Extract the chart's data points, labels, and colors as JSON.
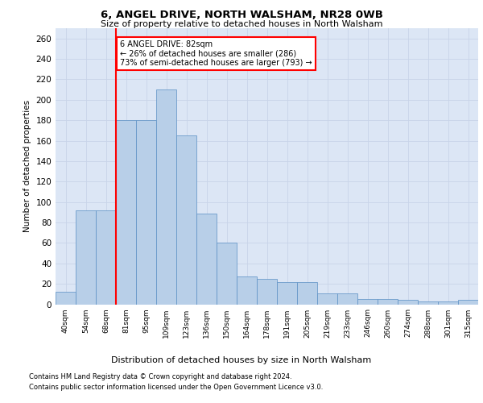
{
  "title1": "6, ANGEL DRIVE, NORTH WALSHAM, NR28 0WB",
  "title2": "Size of property relative to detached houses in North Walsham",
  "xlabel": "Distribution of detached houses by size in North Walsham",
  "ylabel": "Number of detached properties",
  "categories": [
    "40sqm",
    "54sqm",
    "68sqm",
    "81sqm",
    "95sqm",
    "109sqm",
    "123sqm",
    "136sqm",
    "150sqm",
    "164sqm",
    "178sqm",
    "191sqm",
    "205sqm",
    "219sqm",
    "233sqm",
    "246sqm",
    "260sqm",
    "274sqm",
    "288sqm",
    "301sqm",
    "315sqm"
  ],
  "values": [
    12,
    92,
    92,
    180,
    180,
    210,
    165,
    89,
    60,
    27,
    25,
    22,
    22,
    11,
    11,
    5,
    5,
    4,
    3,
    3,
    4
  ],
  "bar_color": "#b8cfe8",
  "bar_edge_color": "#5a8fc4",
  "annotation_text": "6 ANGEL DRIVE: 82sqm\n← 26% of detached houses are smaller (286)\n73% of semi-detached houses are larger (793) →",
  "annotation_box_color": "white",
  "annotation_box_edge_color": "red",
  "highlight_line_color": "red",
  "ylim": [
    0,
    270
  ],
  "yticks": [
    0,
    20,
    40,
    60,
    80,
    100,
    120,
    140,
    160,
    180,
    200,
    220,
    240,
    260
  ],
  "grid_color": "#c8d4e8",
  "background_color": "#dce6f5",
  "footer1": "Contains HM Land Registry data © Crown copyright and database right 2024.",
  "footer2": "Contains public sector information licensed under the Open Government Licence v3.0."
}
